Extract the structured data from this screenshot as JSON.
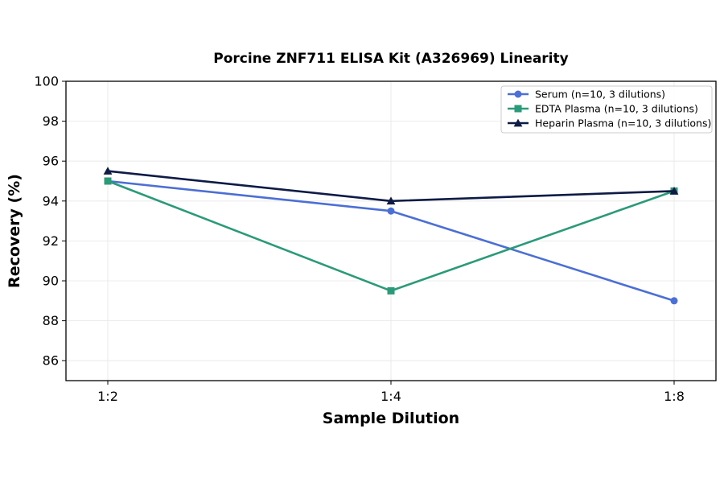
{
  "chart_data": {
    "type": "line",
    "title": "Porcine ZNF711 ELISA Kit (A326969) Linearity",
    "xlabel": "Sample Dilution",
    "ylabel": "Recovery (%)",
    "categories": [
      "1:2",
      "1:4",
      "1:8"
    ],
    "ylim": [
      85,
      100
    ],
    "yticks": [
      86,
      88,
      90,
      92,
      94,
      96,
      98,
      100
    ],
    "grid": true,
    "legend_position": "top-right",
    "series": [
      {
        "name": "Serum (n=10, 3 dilutions)",
        "values": [
          95.0,
          93.5,
          89.0
        ],
        "color": "#4C6FD6",
        "marker": "circle"
      },
      {
        "name": "EDTA Plasma (n=10, 3 dilutions)",
        "values": [
          95.0,
          89.5,
          94.5
        ],
        "color": "#2A9A78",
        "marker": "square"
      },
      {
        "name": "Heparin Plasma (n=10, 3 dilutions)",
        "values": [
          95.5,
          94.0,
          94.5
        ],
        "color": "#0D1B45",
        "marker": "triangle"
      }
    ]
  }
}
